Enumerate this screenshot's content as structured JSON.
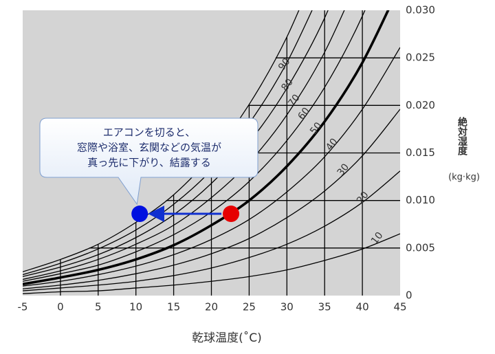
{
  "chart_data": {
    "type": "line",
    "x_label": "乾球温度(˚C)",
    "y_label": "絶対湿度",
    "y_label_unit": "(kg·kg)",
    "x": [
      -5,
      0,
      5,
      10,
      15,
      20,
      25,
      30,
      35,
      40,
      45
    ],
    "series": [
      {
        "name": "10",
        "color": "#000000",
        "width": 1.3,
        "values": [
          0.0002,
          0.0004,
          0.0005,
          0.0008,
          0.0011,
          0.0015,
          0.002,
          0.0027,
          0.0037,
          0.0049,
          0.0065
        ]
      },
      {
        "name": "20",
        "color": "#000000",
        "width": 1.3,
        "values": [
          0.0005,
          0.0008,
          0.0011,
          0.0015,
          0.0021,
          0.0029,
          0.004,
          0.0054,
          0.0073,
          0.0098,
          0.0131
        ]
      },
      {
        "name": "30",
        "color": "#000000",
        "width": 1.3,
        "values": [
          0.0007,
          0.0011,
          0.0016,
          0.0023,
          0.0032,
          0.0044,
          0.006,
          0.0082,
          0.011,
          0.0147,
          0.0196
        ]
      },
      {
        "name": "40",
        "color": "#000000",
        "width": 1.3,
        "values": [
          0.001,
          0.0015,
          0.0022,
          0.0031,
          0.0043,
          0.0059,
          0.008,
          0.0109,
          0.0146,
          0.0196,
          0.0261
        ]
      },
      {
        "name": "50",
        "color": "#000000",
        "width": 3.6,
        "values": [
          0.0012,
          0.0019,
          0.0027,
          0.0038,
          0.0053,
          0.0074,
          0.01,
          0.0136,
          0.0183,
          0.0245,
          0.0327
        ]
      },
      {
        "name": "60",
        "color": "#000000",
        "width": 1.3,
        "values": [
          0.0015,
          0.0023,
          0.0032,
          0.0046,
          0.0064,
          0.0088,
          0.012,
          0.0163,
          0.0219,
          0.0294,
          0.0392
        ]
      },
      {
        "name": "70",
        "color": "#000000",
        "width": 1.3,
        "values": [
          0.0017,
          0.0026,
          0.0038,
          0.0054,
          0.0074,
          0.0103,
          0.014,
          0.019,
          0.0256,
          0.0343,
          null
        ]
      },
      {
        "name": "80",
        "color": "#000000",
        "width": 1.3,
        "values": [
          0.002,
          0.003,
          0.0043,
          0.0061,
          0.0085,
          0.0118,
          0.0161,
          0.0218,
          0.0292,
          0.0392,
          null
        ]
      },
      {
        "name": "90",
        "color": "#000000",
        "width": 1.3,
        "values": [
          0.0022,
          0.0034,
          0.0049,
          0.0069,
          0.0096,
          0.0132,
          0.0181,
          0.0245,
          0.0329,
          null,
          null
        ]
      },
      {
        "color": "#000000",
        "width": 1.3,
        "values": [
          0.0025,
          0.0038,
          0.0054,
          0.0077,
          0.0106,
          0.0147,
          0.0201,
          0.0272,
          0.0365,
          null,
          null
        ]
      }
    ],
    "points": [
      {
        "x": 22.6,
        "y": 0.0086,
        "color": "#e60000"
      },
      {
        "x": 10.5,
        "y": 0.0086,
        "color": "#0010e0"
      }
    ],
    "arrow_color": "#1030d0",
    "annotation": [
      "エアコンを切ると、",
      "窓際や浴室、玄関などの気温が",
      "真っ先に下がり、結露する"
    ],
    "xlim": [
      -5,
      45
    ],
    "ylim": [
      0,
      0.03
    ],
    "xticks": [
      -5,
      0,
      5,
      10,
      15,
      20,
      25,
      30,
      35,
      40,
      45
    ],
    "yticks": [
      0,
      {
        "value": 0.005,
        "label": "0.005"
      },
      {
        "value": 0.01,
        "label": "0.010"
      },
      {
        "value": 0.015,
        "label": "0.015"
      },
      {
        "value": 0.02,
        "label": "0.020"
      },
      {
        "value": 0.025,
        "label": "0.025"
      },
      {
        "value": 0.03,
        "label": "0.030"
      }
    ],
    "background": "#d4d4d4",
    "grid": true
  }
}
